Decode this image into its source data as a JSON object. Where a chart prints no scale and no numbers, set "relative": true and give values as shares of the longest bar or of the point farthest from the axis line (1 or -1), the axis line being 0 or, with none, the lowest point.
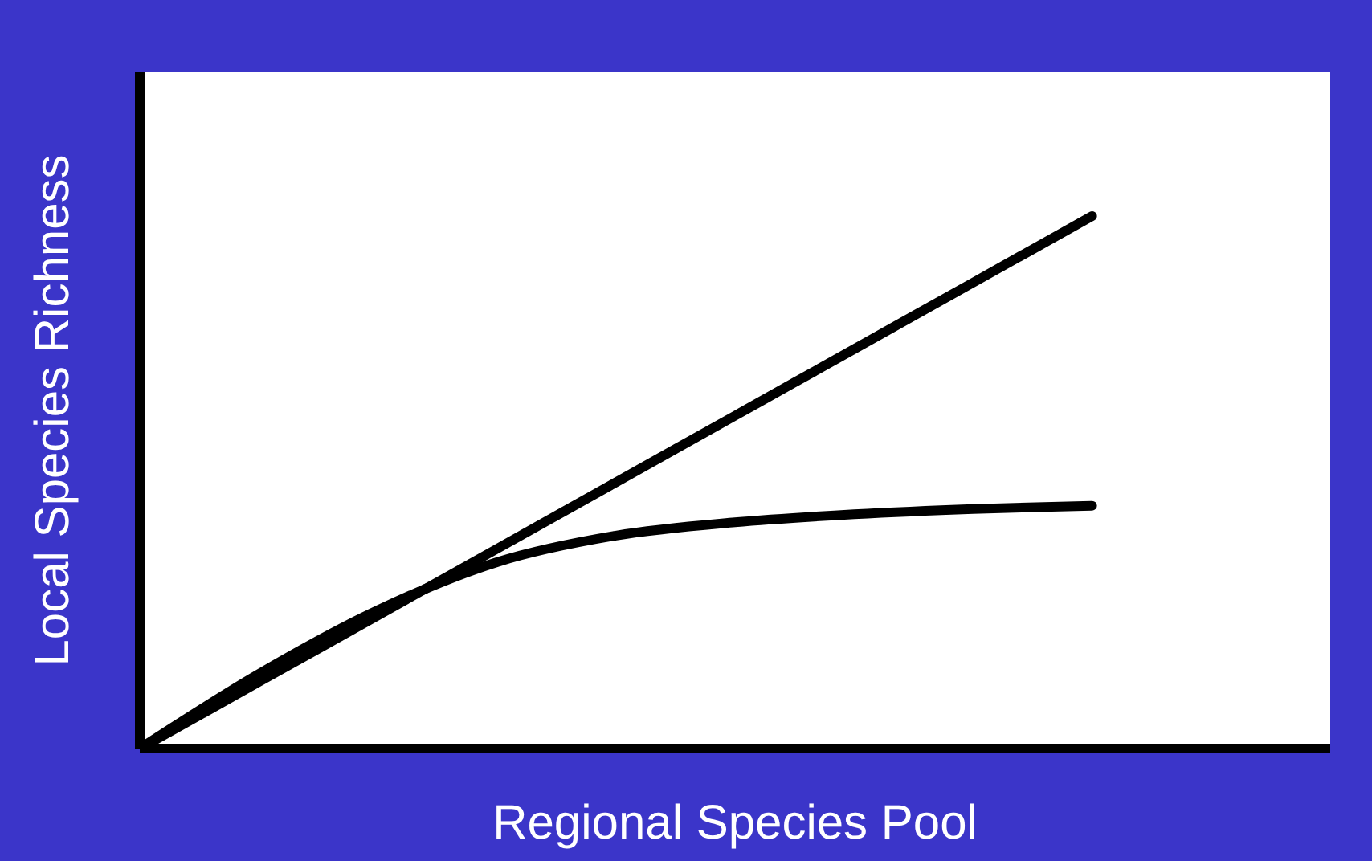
{
  "chart_data": {
    "type": "line",
    "relative": true,
    "xlabel": "Regional Species Pool",
    "ylabel": "Local Species Richness",
    "categories": [
      null,
      null,
      null,
      null,
      null,
      null,
      null,
      null,
      null,
      null,
      null
    ],
    "series": [
      {
        "color": "#000000",
        "values": [
          0,
          0.125,
          0.25,
          0.375,
          0.5,
          0.625,
          0.75,
          0.875,
          1,
          null,
          null
        ]
      },
      {
        "color": "#000000",
        "values": [
          0,
          0.14,
          0.26,
          0.35,
          0.4,
          0.425,
          0.44,
          0.45,
          0.456,
          null,
          null
        ]
      }
    ]
  }
}
